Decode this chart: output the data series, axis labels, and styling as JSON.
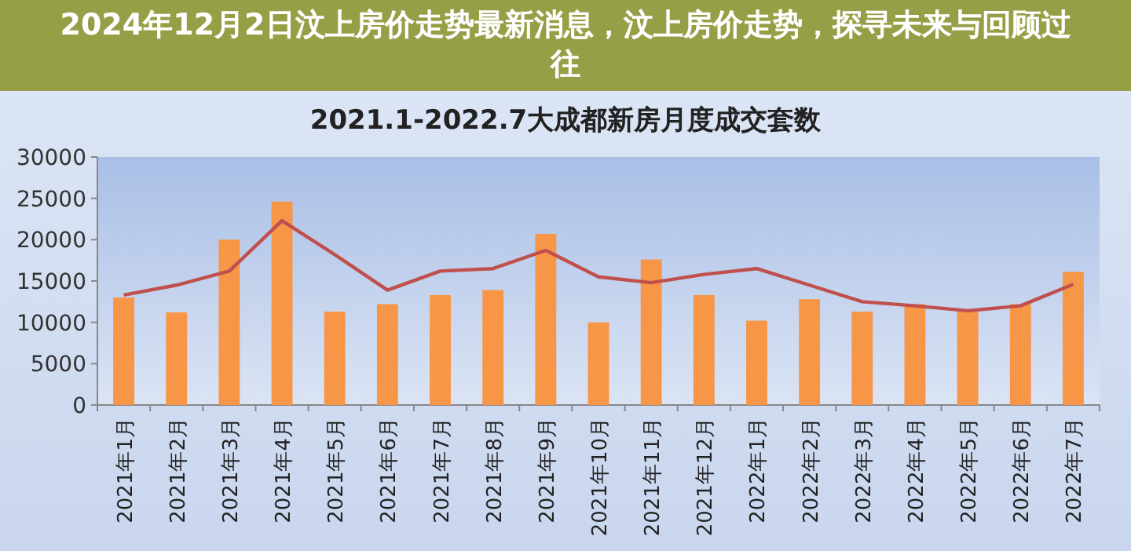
{
  "chart_data": {
    "type": "bar",
    "title": "2021.1-2022.7大成都新房月度成交套数",
    "categories": [
      "2021年1月",
      "2021年2月",
      "2021年3月",
      "2021年4月",
      "2021年5月",
      "2021年6月",
      "2021年7月",
      "2021年8月",
      "2021年9月",
      "2021年10月",
      "2021年11月",
      "2021年12月",
      "2022年1月",
      "2022年2月",
      "2022年3月",
      "2022年4月",
      "2022年5月",
      "2022年6月",
      "2022年7月"
    ],
    "series": [
      {
        "color": "#f79646",
        "values": [
          13000,
          11200,
          20000,
          24600,
          11300,
          12200,
          13300,
          13900,
          20700,
          10000,
          17600,
          13300,
          10200,
          12800,
          11300,
          12200,
          11400,
          12200,
          16100
        ]
      },
      {
        "type": "line",
        "color": "#c0504d",
        "values": [
          13300,
          14500,
          16200,
          22300,
          18200,
          13900,
          16200,
          16500,
          18700,
          15500,
          14800,
          15800,
          16500,
          14500,
          12500,
          12000,
          11400,
          12000,
          14600
        ]
      }
    ],
    "ylim": [
      0,
      30000
    ],
    "yticks": [
      0,
      5000,
      10000,
      15000,
      20000,
      25000,
      30000
    ],
    "grid": false,
    "marker": "none",
    "line_style": "solid",
    "annotations": [
      "2024年12月2日汶上房价走势最新消息，汶上房价走势，探寻未来与回顾过往"
    ]
  }
}
